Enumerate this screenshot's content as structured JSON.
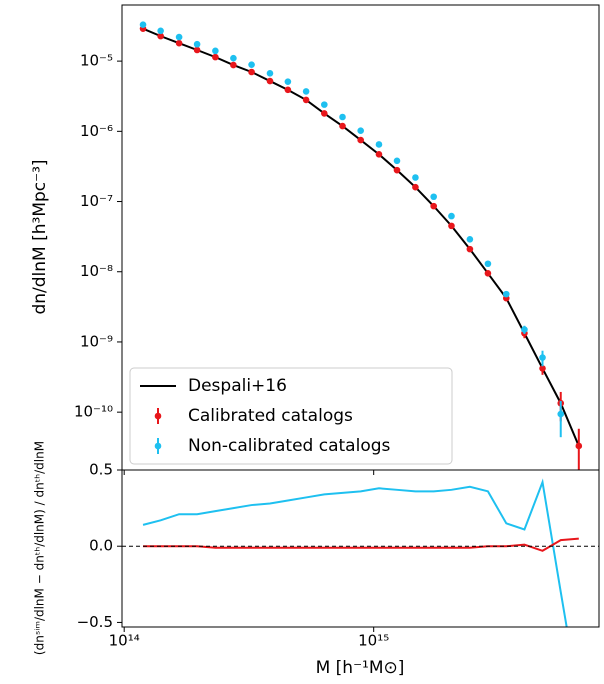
{
  "chart_data": [
    {
      "type": "scatter",
      "log_x": true,
      "log_y": true,
      "ylabel": "dn/dlnM  [h³Mpc⁻³]",
      "x": [
        119000000000000.0,
        140000000000000.0,
        166000000000000.0,
        196000000000000.0,
        232000000000000.0,
        274000000000000.0,
        324000000000000.0,
        384000000000000.0,
        453000000000000.0,
        536000000000000.0,
        634000000000000.0,
        750000000000000.0,
        887000000000000.0,
        1050000000000000.0,
        1240000000000000.0,
        1470000000000000.0,
        1740000000000000.0,
        2050000000000000.0,
        2430000000000000.0,
        2870000000000000.0,
        3400000000000000.0,
        4020000000000000.0,
        4750000000000000.0,
        5620000000000000.0,
        6640000000000000.0
      ],
      "xlim": [
        98000000000000.0,
        8000000000000000.0
      ],
      "xticks": [
        {
          "value": 100000000000000.0,
          "label": "10¹⁴"
        },
        {
          "value": 1000000000000000.0,
          "label": "10¹⁵"
        }
      ],
      "ylim": [
        1.5e-11,
        6.3e-05
      ],
      "yticks": [
        {
          "value": 1e-05,
          "label": "10⁻⁵"
        },
        {
          "value": 1e-06,
          "label": "10⁻⁶"
        },
        {
          "value": 1e-07,
          "label": "10⁻⁷"
        },
        {
          "value": 1e-08,
          "label": "10⁻⁸"
        },
        {
          "value": 1e-09,
          "label": "10⁻⁹"
        },
        {
          "value": 1e-10,
          "label": "10⁻¹⁰"
        }
      ],
      "legend": "lower left",
      "series": [
        {
          "name": "Despali+16",
          "color": "#000000",
          "kind": "line",
          "values": [
            2.9e-05,
            2.27e-05,
            1.8e-05,
            1.44e-05,
            1.14e-05,
            8.8e-06,
            7e-06,
            5.2e-06,
            3.9e-06,
            2.8e-06,
            1.8e-06,
            1.19e-06,
            7.5e-07,
            4.7e-07,
            2.8e-07,
            1.6e-07,
            8.6e-08,
            4.5e-08,
            2.1e-08,
            9.5e-09,
            4.2e-09,
            1.33e-09,
            4.2e-10,
            1.34e-10,
            3.3e-11
          ]
        },
        {
          "name": "Calibrated catalogs",
          "color": "#e8161b",
          "kind": "points",
          "values": [
            2.9e-05,
            2.27e-05,
            1.8e-05,
            1.44e-05,
            1.14e-05,
            8.8e-06,
            7e-06,
            5.2e-06,
            3.9e-06,
            2.8e-06,
            1.8e-06,
            1.19e-06,
            7.5e-07,
            4.7e-07,
            2.8e-07,
            1.6e-07,
            8.6e-08,
            4.5e-08,
            2.1e-08,
            9.5e-09,
            4.2e-09,
            1.33e-09,
            4.2e-10,
            1.34e-10,
            3.3e-11
          ],
          "errors": [
            null,
            null,
            null,
            null,
            null,
            null,
            null,
            null,
            null,
            null,
            null,
            null,
            null,
            null,
            null,
            null,
            null,
            null,
            null,
            null,
            null,
            2e-10,
            8e-11,
            6e-11,
            2.5e-11
          ]
        },
        {
          "name": "Non-calibrated catalogs",
          "color": "#1ec0f0",
          "kind": "points",
          "values": [
            3.3e-05,
            2.7e-05,
            2.2e-05,
            1.74e-05,
            1.4e-05,
            1.1e-05,
            8.9e-06,
            6.7e-06,
            5.1e-06,
            3.7e-06,
            2.4e-06,
            1.6e-06,
            1.02e-06,
            6.5e-07,
            3.8e-07,
            2.2e-07,
            1.17e-07,
            6.2e-08,
            2.9e-08,
            1.3e-08,
            4.8e-09,
            1.5e-09,
            6e-10,
            9.4e-11,
            null
          ],
          "errors": [
            null,
            null,
            null,
            null,
            null,
            null,
            null,
            null,
            null,
            null,
            null,
            null,
            null,
            null,
            null,
            null,
            null,
            null,
            null,
            null,
            null,
            2e-10,
            1.5e-10,
            5e-11,
            null
          ]
        }
      ]
    },
    {
      "type": "line",
      "log_x": true,
      "xlabel": "M [h⁻¹M⊙]",
      "ylabel": "(dnˢⁱᵐ/dlnM − dnᵗʰ/dlnM) / dnᵗʰ/dlnM",
      "x": [
        119000000000000.0,
        140000000000000.0,
        166000000000000.0,
        196000000000000.0,
        232000000000000.0,
        274000000000000.0,
        324000000000000.0,
        384000000000000.0,
        453000000000000.0,
        536000000000000.0,
        634000000000000.0,
        750000000000000.0,
        887000000000000.0,
        1050000000000000.0,
        1240000000000000.0,
        1470000000000000.0,
        1740000000000000.0,
        2050000000000000.0,
        2430000000000000.0,
        2870000000000000.0,
        3400000000000000.0,
        4020000000000000.0,
        4750000000000000.0,
        5620000000000000.0,
        6640000000000000.0
      ],
      "xlim": [
        98000000000000.0,
        8000000000000000.0
      ],
      "xticks": [
        {
          "value": 100000000000000.0,
          "label": "10¹⁴"
        },
        {
          "value": 1000000000000000.0,
          "label": "10¹⁵"
        }
      ],
      "ylim": [
        -0.53,
        0.5
      ],
      "yticks": [
        {
          "value": -0.5,
          "label": "−0.5"
        },
        {
          "value": 0,
          "label": "0.0"
        },
        0.5
      ],
      "reference_line": 0,
      "series": [
        {
          "color": "#1ec0f0",
          "values": [
            0.14,
            0.17,
            0.21,
            0.21,
            0.23,
            0.25,
            0.27,
            0.28,
            0.3,
            0.32,
            0.34,
            0.35,
            0.36,
            0.38,
            0.37,
            0.36,
            0.36,
            0.37,
            0.39,
            0.36,
            0.15,
            0.11,
            0.42,
            -0.3,
            -1
          ]
        },
        {
          "color": "#e8161b",
          "values": [
            0,
            0,
            0,
            0,
            -0.01,
            -0.01,
            -0.01,
            -0.01,
            -0.01,
            -0.01,
            -0.01,
            -0.01,
            -0.01,
            -0.01,
            -0.01,
            -0.01,
            -0.01,
            -0.01,
            -0.01,
            0,
            0,
            0.01,
            -0.03,
            0.04,
            0.05
          ]
        }
      ]
    }
  ]
}
